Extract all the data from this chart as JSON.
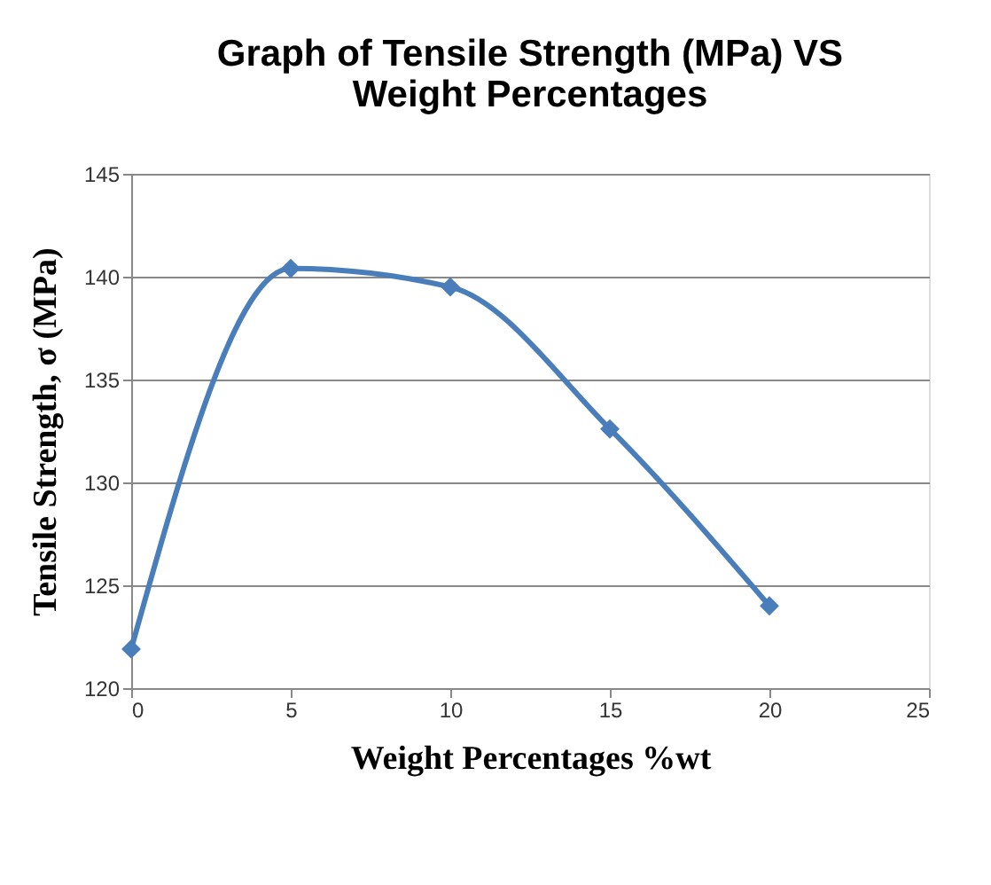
{
  "chart_data": {
    "type": "line",
    "title": "Graph of Tensile Strength (MPa) VS Weight Percentages",
    "xlabel": "Weight Percentages %wt",
    "ylabel": "Tensile Strength,  σ (MPa)",
    "x": [
      0,
      5,
      10,
      15,
      20
    ],
    "series": [
      {
        "color": "#4a7ebb",
        "values": [
          121.9,
          140.4,
          139.5,
          132.6,
          124.0
        ]
      }
    ],
    "xlim": [
      0,
      25
    ],
    "xticks": [
      0,
      5,
      10,
      15,
      20,
      25
    ],
    "ylim": [
      120,
      145
    ],
    "yticks": [
      120,
      125,
      130,
      135,
      140,
      145
    ],
    "grid": "y",
    "marker": "diamond",
    "line_style": "solid",
    "legend": false
  }
}
